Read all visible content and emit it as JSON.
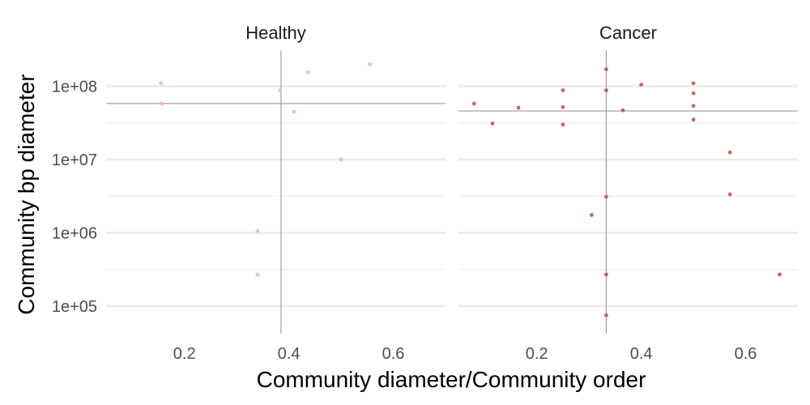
{
  "chart_data": {
    "type": "scatter",
    "xlabel": "Community diameter/Community order",
    "ylabel": "Community bp diameter",
    "y_scale": "log10",
    "xlim": [
      0.05,
      0.7
    ],
    "ylim": [
      42000,
      310000000
    ],
    "x_ticks": [
      {
        "value": 0.2,
        "label": "0.2"
      },
      {
        "value": 0.4,
        "label": "0.4"
      },
      {
        "value": 0.6,
        "label": "0.6"
      }
    ],
    "y_ticks": [
      {
        "value": 100000,
        "label": "1e+05"
      },
      {
        "value": 1000000,
        "label": "1e+06"
      },
      {
        "value": 10000000,
        "label": "1e+07"
      },
      {
        "value": 100000000,
        "label": "1e+08"
      }
    ],
    "grid": true,
    "facets": [
      {
        "title": "Healthy",
        "color": "#f4b6ad",
        "ref_x": 0.385,
        "ref_y": 58000000,
        "points": [
          {
            "x": 0.155,
            "y": 110000000
          },
          {
            "x": 0.157,
            "y": 58000000
          },
          {
            "x": 0.34,
            "y": 1060000
          },
          {
            "x": 0.34,
            "y": 270000
          },
          {
            "x": 0.383,
            "y": 88000000
          },
          {
            "x": 0.41,
            "y": 45000000
          },
          {
            "x": 0.437,
            "y": 155000000
          },
          {
            "x": 0.5,
            "y": 10000000
          },
          {
            "x": 0.555,
            "y": 200000000
          }
        ]
      },
      {
        "title": "Cancer",
        "color": "#c0574c",
        "ref_x": 0.333,
        "ref_y": 46000000,
        "points": [
          {
            "x": 0.08,
            "y": 58000000
          },
          {
            "x": 0.115,
            "y": 31000000
          },
          {
            "x": 0.165,
            "y": 51000000
          },
          {
            "x": 0.25,
            "y": 88000000
          },
          {
            "x": 0.25,
            "y": 52000000
          },
          {
            "x": 0.25,
            "y": 30000000
          },
          {
            "x": 0.333,
            "y": 170000000
          },
          {
            "x": 0.333,
            "y": 88000000
          },
          {
            "x": 0.333,
            "y": 3100000
          },
          {
            "x": 0.333,
            "y": 270000
          },
          {
            "x": 0.333,
            "y": 75000
          },
          {
            "x": 0.305,
            "y": 1750000
          },
          {
            "x": 0.365,
            "y": 47000000
          },
          {
            "x": 0.4,
            "y": 105000000
          },
          {
            "x": 0.5,
            "y": 110000000
          },
          {
            "x": 0.5,
            "y": 80000000
          },
          {
            "x": 0.5,
            "y": 54000000
          },
          {
            "x": 0.5,
            "y": 35000000
          },
          {
            "x": 0.57,
            "y": 12500000
          },
          {
            "x": 0.57,
            "y": 3350000
          },
          {
            "x": 0.665,
            "y": 270000
          }
        ]
      }
    ]
  }
}
